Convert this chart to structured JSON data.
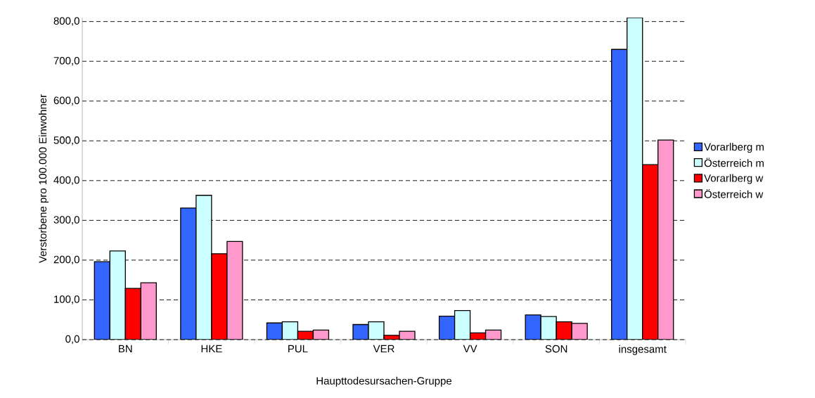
{
  "chart_data": {
    "type": "bar",
    "xlabel": "Haupttodesursachen-Gruppe",
    "ylabel": "Verstorbene pro 100.000 Einwohner",
    "categories": [
      "BN",
      "HKE",
      "PUL",
      "VER",
      "VV",
      "SON",
      "insgesamt"
    ],
    "series": [
      {
        "name": "Vorarlberg m",
        "color": "#3366ff",
        "values": [
          196,
          331,
          42,
          38,
          59,
          62,
          730
        ]
      },
      {
        "name": "Österreich m",
        "color": "#ccffff",
        "values": [
          223,
          363,
          45,
          45,
          73,
          58,
          810
        ]
      },
      {
        "name": "Vorarlberg w",
        "color": "#ff0000",
        "values": [
          129,
          216,
          21,
          11,
          17,
          45,
          440
        ]
      },
      {
        "name": "Österreich w",
        "color": "#ff99cc",
        "values": [
          143,
          247,
          24,
          21,
          24,
          41,
          502
        ]
      }
    ],
    "ylim": [
      0,
      810
    ],
    "yticks": [
      {
        "value": 0,
        "label": "0,0"
      },
      {
        "value": 100,
        "label": "100,0"
      },
      {
        "value": 200,
        "label": "200,0"
      },
      {
        "value": 300,
        "label": "300,0"
      },
      {
        "value": 400,
        "label": "400,0"
      },
      {
        "value": 500,
        "label": "500,0"
      },
      {
        "value": 600,
        "label": "600,0"
      },
      {
        "value": 700,
        "label": "700,0"
      },
      {
        "value": 800,
        "label": "800,0"
      }
    ],
    "grid": "y",
    "legend": "right"
  }
}
